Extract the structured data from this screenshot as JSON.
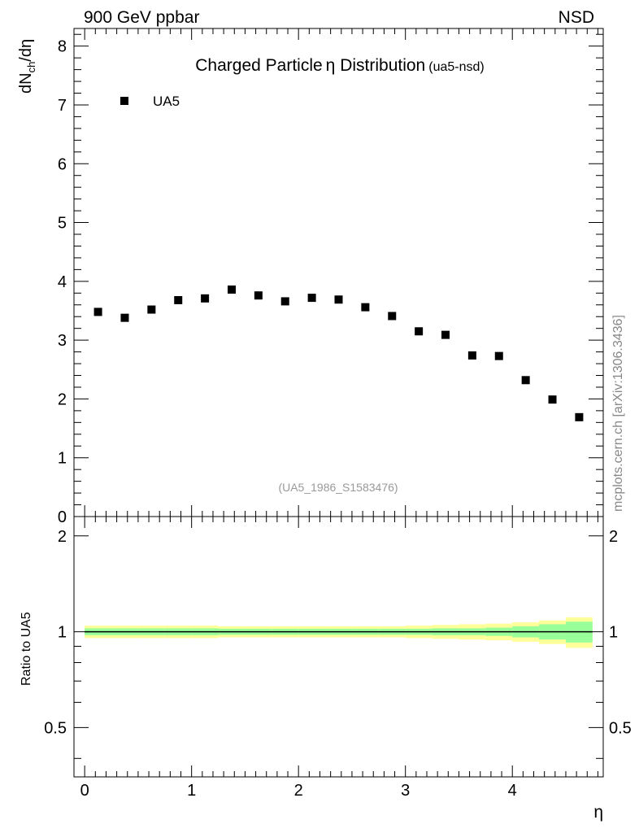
{
  "header": {
    "left": "900 GeV ppbar",
    "right": "NSD"
  },
  "title": {
    "main": "Charged Particle",
    "symbol": "η",
    "suffix": " Distribution",
    "tag": "(ua5-nsd)"
  },
  "ref_id": "(UA5_1986_S1583476)",
  "watermark": "mcplots.cern.ch [arXiv:1306.3436]",
  "legend": {
    "label": "UA5",
    "position": "top-left"
  },
  "chart_data": [
    {
      "type": "scatter",
      "panel": "main",
      "ylabel": {
        "base": "dN",
        "sub": "ch",
        "rest": "/dη"
      },
      "xlim": [
        -0.1,
        4.85
      ],
      "ylim": [
        0,
        8.3
      ],
      "y_ticks": [
        "0",
        "1",
        "2",
        "3",
        "4",
        "5",
        "6",
        "7",
        "8"
      ],
      "series": [
        {
          "name": "UA5",
          "color": "#000000",
          "marker": "square",
          "x": [
            0.125,
            0.375,
            0.625,
            0.875,
            1.125,
            1.375,
            1.625,
            1.875,
            2.125,
            2.375,
            2.625,
            2.875,
            3.125,
            3.375,
            3.625,
            3.875,
            4.125,
            4.375,
            4.625
          ],
          "y": [
            3.48,
            3.38,
            3.52,
            3.68,
            3.71,
            3.86,
            3.76,
            3.66,
            3.72,
            3.69,
            3.56,
            3.41,
            3.15,
            3.09,
            2.74,
            2.73,
            2.32,
            1.99,
            1.69
          ]
        }
      ]
    },
    {
      "type": "area",
      "panel": "ratio",
      "ylabel": "Ratio to UA5",
      "xlabel": "η",
      "xlim": [
        -0.1,
        4.85
      ],
      "ylim": [
        0.35,
        2.3
      ],
      "y_ticks": [
        "0.5",
        "1",
        "2"
      ],
      "x_ticks": [
        "0",
        "1",
        "2",
        "3",
        "4"
      ],
      "bins": [
        0.0,
        0.25,
        0.5,
        0.75,
        1.0,
        1.25,
        1.5,
        1.75,
        2.0,
        2.25,
        2.5,
        2.75,
        3.0,
        3.25,
        3.5,
        3.75,
        4.0,
        4.25,
        4.5,
        4.75
      ],
      "stat_band": [
        0.025,
        0.025,
        0.025,
        0.025,
        0.025,
        0.022,
        0.022,
        0.022,
        0.022,
        0.022,
        0.022,
        0.022,
        0.022,
        0.025,
        0.025,
        0.03,
        0.04,
        0.055,
        0.075
      ],
      "total_band": [
        0.045,
        0.045,
        0.045,
        0.045,
        0.045,
        0.04,
        0.04,
        0.04,
        0.04,
        0.04,
        0.04,
        0.04,
        0.045,
        0.05,
        0.055,
        0.06,
        0.07,
        0.085,
        0.11
      ],
      "band_colors": {
        "stat": "#99ff99",
        "total": "#ffff99"
      },
      "reference_line": 1.0
    }
  ]
}
